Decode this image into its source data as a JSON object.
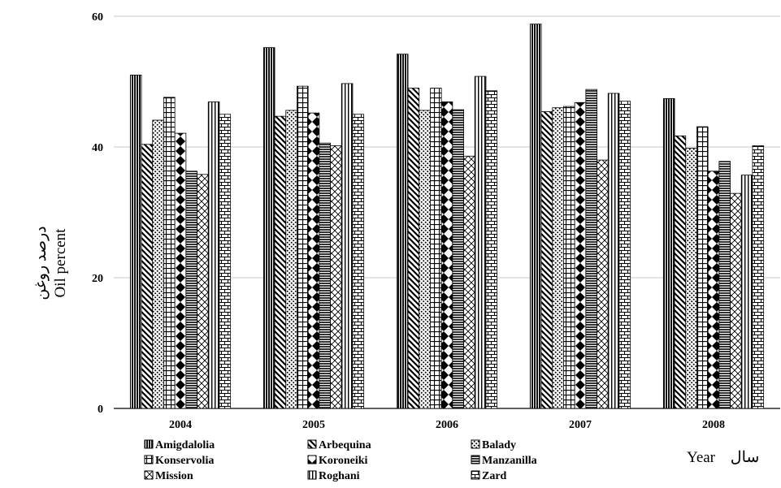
{
  "chart_data": {
    "type": "bar",
    "categories": [
      "2004",
      "2005",
      "2006",
      "2007",
      "2008"
    ],
    "series": [
      {
        "name": "Amigdalolia",
        "values": [
          51.0,
          55.2,
          54.2,
          58.8,
          47.4
        ],
        "pattern": "dense-vertical"
      },
      {
        "name": "Arbequina",
        "values": [
          40.4,
          44.7,
          49.0,
          45.4,
          41.7
        ],
        "pattern": "diagonal"
      },
      {
        "name": "Balady",
        "values": [
          44.1,
          45.6,
          45.6,
          46.0,
          39.8
        ],
        "pattern": "dots"
      },
      {
        "name": "Konservolia",
        "values": [
          47.6,
          49.3,
          49.0,
          46.2,
          43.1
        ],
        "pattern": "grid"
      },
      {
        "name": "Koroneiki",
        "values": [
          42.1,
          45.2,
          46.9,
          46.8,
          36.3
        ],
        "pattern": "diamond"
      },
      {
        "name": "Manzanilla",
        "values": [
          36.3,
          40.6,
          45.7,
          48.8,
          37.8
        ],
        "pattern": "horizontal"
      },
      {
        "name": "Mission",
        "values": [
          35.8,
          40.2,
          38.6,
          38.0,
          32.9
        ],
        "pattern": "cross"
      },
      {
        "name": "Roghani",
        "values": [
          46.9,
          49.7,
          50.8,
          48.2,
          35.7
        ],
        "pattern": "vertical"
      },
      {
        "name": "Zard",
        "values": [
          45.0,
          45.0,
          48.6,
          47.0,
          40.2
        ],
        "pattern": "brick"
      }
    ],
    "ylim": [
      0,
      60
    ],
    "yticks": [
      0,
      20,
      40,
      60
    ],
    "grid": true,
    "legend_position": "bottom-left",
    "xlabel_en": "Year",
    "xlabel_fa": "سال",
    "ylabel_en": "Oil percent",
    "ylabel_fa": "درصد روغن"
  }
}
